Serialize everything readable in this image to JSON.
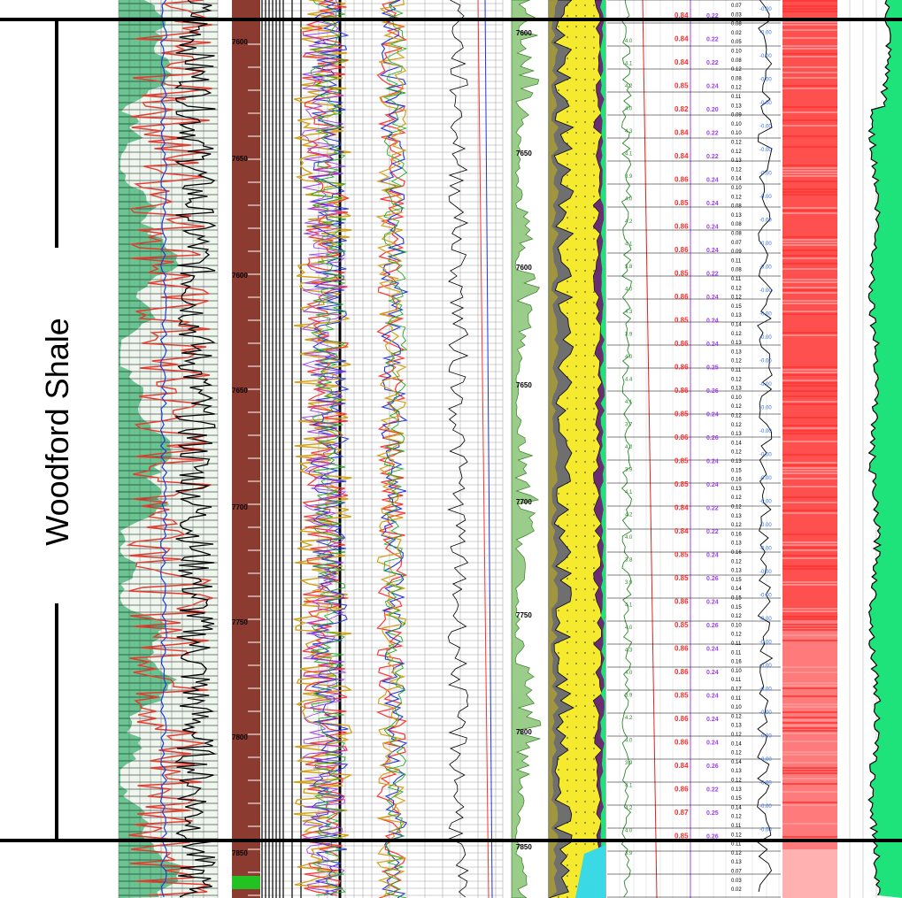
{
  "formation": {
    "label": "Woodford Shale"
  },
  "depth_labels": [
    "7600",
    "7650",
    "7600",
    "7650",
    "7700",
    "7750",
    "7800",
    "7850"
  ],
  "colors": {
    "frame": "#000000",
    "sidebar_fill": "#3cb371",
    "sidebar_red": "#e53b2f",
    "lith_brown": "#8c3b31",
    "lith_green": "#22c222",
    "sand_yellow": "#f5ea2e",
    "shale_gray": "#6f6f6f",
    "olive": "#a69a3b",
    "purple": "#6a2d72",
    "cyan": "#3ad9e6",
    "bright_green": "#1ee37a",
    "red_band": "#ff5050",
    "pink_band": "#ffb0b0",
    "value_red": "#ff2a2a",
    "value_purple": "#a040e8",
    "value_blue": "#2c6ef0"
  },
  "value_track": {
    "red_values": [
      "0.84",
      "0.84",
      "0.84",
      "0.85",
      "0.82",
      "0.84",
      "0.84",
      "0.86",
      "0.85",
      "0.86",
      "0.86",
      "0.85",
      "0.86",
      "0.85",
      "0.86",
      "0.86",
      "0.86",
      "0.85",
      "0.86",
      "0.85",
      "0.85",
      "0.84",
      "0.84",
      "0.85",
      "0.85",
      "0.86",
      "0.85",
      "0.86",
      "0.86",
      "0.85",
      "0.86",
      "0.86",
      "0.84",
      "0.86",
      "0.87",
      "0.85"
    ],
    "purple_values": [
      "0.22",
      "0.22",
      "0.22",
      "0.24",
      "0.20",
      "0.22",
      "0.22",
      "0.24",
      "0.24",
      "0.24",
      "0.24",
      "0.22",
      "0.24",
      "0.24",
      "0.24",
      "0.25",
      "0.26",
      "0.24",
      "0.26",
      "0.24",
      "0.24",
      "0.22",
      "0.22",
      "0.24",
      "0.26",
      "0.24",
      "0.26",
      "0.24",
      "0.24",
      "0.24",
      "0.24",
      "0.24",
      "0.26",
      "0.22",
      "0.25",
      "0.26"
    ],
    "small_values": [
      "0.07",
      "0.03",
      "0.08",
      "0.02",
      "0.05",
      "0.10",
      "0.08",
      "0.12",
      "0.08",
      "0.12",
      "0.11",
      "0.13",
      "0.09",
      "0.10",
      "0.10",
      "0.12",
      "0.12",
      "0.13",
      "0.12",
      "0.14",
      "0.10",
      "0.12",
      "0.08",
      "0.13",
      "0.08",
      "0.08",
      "0.07",
      "0.09",
      "0.11",
      "0.08",
      "0.11",
      "0.12",
      "0.12",
      "0.15",
      "0.13",
      "0.14",
      "0.12",
      "0.13",
      "0.13",
      "0.12",
      "0.11",
      "0.12",
      "0.13",
      "0.10",
      "0.12",
      "0.12",
      "0.12",
      "0.13",
      "0.14",
      "0.12",
      "0.13",
      "0.15",
      "0.16",
      "0.13",
      "0.12",
      "0.12",
      "0.13",
      "0.12",
      "0.16",
      "0.13",
      "0.16",
      "0.12",
      "0.13",
      "0.15",
      "0.14",
      "0.15",
      "0.15",
      "0.12",
      "0.10",
      "0.12",
      "0.11",
      "0.11",
      "0.16",
      "0.10",
      "0.11",
      "0.17",
      "0.11",
      "0.10",
      "0.12",
      "0.13",
      "0.12",
      "0.14",
      "0.12",
      "0.14",
      "0.13",
      "0.12",
      "0.13",
      "0.15",
      "0.14",
      "0.12",
      "0.11",
      "0.12",
      "0.11",
      "0.12",
      "0.13",
      "0.07",
      "0.03",
      "0.02"
    ],
    "blue_values": [
      "-0.00",
      "-0.00",
      "-0.00",
      "-0.00",
      "-0.00",
      "-0.00",
      "-0.00",
      "-0.00",
      "-0.00",
      "-0.00",
      "-0.00",
      "-0.00",
      "-0.00",
      "-0.00",
      "-0.00",
      "-0.00",
      "-0.00",
      "-0.00",
      "-0.00",
      "-0.00",
      "-0.00",
      "-0.00",
      "-0.00",
      "-0.00",
      "-0.00",
      "-0.00",
      "-0.00",
      "-0.00",
      "-0.00",
      "-0.00",
      "-0.00",
      "-0.00",
      "-0.00",
      "-0.00",
      "-0.00",
      "-0.00"
    ]
  },
  "green_values": [
    "4.0",
    "4.1",
    "4.2",
    "4.0",
    "4.3",
    "4.1",
    "3.9",
    "4.0",
    "4.2",
    "4.1",
    "3.8",
    "4.0",
    "4.3",
    "3.9",
    "4.0",
    "4.4",
    "4.1",
    "3.7",
    "4.0",
    "3.9",
    "4.1",
    "4.2",
    "4.0",
    "3.8",
    "3.9",
    "4.1",
    "4.0",
    "4.3",
    "4.0",
    "3.9",
    "4.2",
    "4.0",
    "3.9",
    "4.1",
    "4.2",
    "4.0",
    "3.9"
  ]
}
